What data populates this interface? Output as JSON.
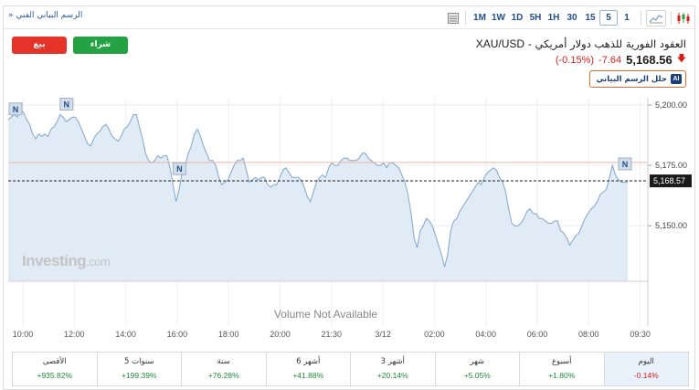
{
  "toolbar": {
    "chart_link": "الرسم البياني الفني",
    "chart_link_arrow": "»",
    "intervals": [
      "1M",
      "1W",
      "1D",
      "5H",
      "1H",
      "30",
      "15",
      "5",
      "1"
    ],
    "active_interval": "5",
    "icons": [
      "table-icon",
      "area-chart-icon",
      "candlestick-icon"
    ]
  },
  "header": {
    "sell_label": "بيع",
    "buy_label": "شراء",
    "symbol": "XAU/USD",
    "name": "العقود الفورية للذهب دولار أمريكي",
    "name_separator": " - ",
    "price": "5,168.56",
    "change": "-7.64",
    "change_pct": "(-0.15%)",
    "ai_label": "حلل الرسم البياني",
    "ai_badge": "AI"
  },
  "chart_data": {
    "type": "area",
    "title": "",
    "x_ticks": [
      "10:00",
      "12:00",
      "14:00",
      "16:00",
      "18:00",
      "20:00",
      "21:30",
      "3/12",
      "02:00",
      "04:00",
      "06:00",
      "08:00",
      "09:30"
    ],
    "y_ticks": [
      "5,200.00",
      "5,175.00",
      "5,150.00"
    ],
    "ylim": [
      5127,
      5203
    ],
    "current_price_label": "5,168.57",
    "current_price": 5168.57,
    "reference_price": 5176.2,
    "news_markers": [
      "N",
      "N",
      "N",
      "N"
    ],
    "volume_text": "Volume Not Available",
    "watermark": "Investing",
    "watermark_suffix": ".com",
    "grid": true,
    "series": [
      {
        "values": [
          5194,
          5195,
          5196,
          5195,
          5198,
          5197,
          5194,
          5192,
          5188,
          5186,
          5188,
          5187,
          5188,
          5187,
          5190,
          5191,
          5193,
          5196,
          5195,
          5193,
          5194,
          5195,
          5195,
          5193,
          5190,
          5187,
          5184,
          5183,
          5186,
          5188,
          5189,
          5191,
          5192,
          5190,
          5187,
          5186,
          5185,
          5187,
          5190,
          5191,
          5193,
          5196,
          5196,
          5191,
          5186,
          5180,
          5177,
          5176,
          5177,
          5179,
          5178,
          5179,
          5179,
          5174,
          5167,
          5160,
          5165,
          5172,
          5175,
          5180,
          5183,
          5188,
          5190,
          5187,
          5183,
          5180,
          5177,
          5177,
          5175,
          5170,
          5167,
          5168,
          5169,
          5172,
          5175,
          5177,
          5177,
          5178,
          5173,
          5168,
          5169,
          5170,
          5169,
          5170,
          5170,
          5167,
          5166,
          5167,
          5167,
          5170,
          5173,
          5174,
          5172,
          5170,
          5170,
          5170,
          5169,
          5166,
          5162,
          5160,
          5164,
          5168,
          5170,
          5171,
          5170,
          5174,
          5176,
          5175,
          5175,
          5177,
          5178,
          5178,
          5177,
          5177,
          5177,
          5178,
          5180,
          5180,
          5178,
          5177,
          5176,
          5175,
          5175,
          5176,
          5174,
          5176,
          5176,
          5175,
          5174,
          5171,
          5168,
          5163,
          5155,
          5145,
          5141,
          5148,
          5150,
          5153,
          5152,
          5150,
          5146,
          5142,
          5138,
          5133,
          5138,
          5148,
          5152,
          5153,
          5156,
          5158,
          5160,
          5162,
          5164,
          5166,
          5168,
          5167,
          5170,
          5172,
          5173,
          5174,
          5173,
          5170,
          5168,
          5164,
          5157,
          5151,
          5150,
          5150,
          5151,
          5153,
          5156,
          5157,
          5155,
          5155,
          5153,
          5153,
          5152,
          5151,
          5151,
          5152,
          5152,
          5148,
          5147,
          5145,
          5142,
          5144,
          5146,
          5147,
          5150,
          5153,
          5155,
          5157,
          5158,
          5160,
          5163,
          5164,
          5165,
          5170,
          5175,
          5171,
          5169,
          5168,
          5168,
          5168
        ]
      }
    ]
  },
  "performance": [
    {
      "label": "اليوم",
      "value": "-0.14%",
      "dir": "neg",
      "selected": true
    },
    {
      "label": "أسبوع",
      "value": "+1.80%",
      "dir": "pos",
      "selected": false
    },
    {
      "label": "شهر",
      "value": "+5.05%",
      "dir": "pos",
      "selected": false
    },
    {
      "label": "3 أشهر",
      "value": "+20.14%",
      "dir": "pos",
      "selected": false
    },
    {
      "label": "6 أشهر",
      "value": "+41.88%",
      "dir": "pos",
      "selected": false
    },
    {
      "label": "سنة",
      "value": "+76.28%",
      "dir": "pos",
      "selected": false
    },
    {
      "label": "5 سنوات",
      "value": "+199.39%",
      "dir": "pos",
      "selected": false
    },
    {
      "label": "الأقصى",
      "value": "+935.82%",
      "dir": "pos",
      "selected": false
    }
  ],
  "colors": {
    "line": "#7ea6cc",
    "area": "#e1ebf5",
    "reference": "#f0b3a8",
    "sell": "#e5332a",
    "buy": "#25a244",
    "accent": "#1f4e8c"
  }
}
